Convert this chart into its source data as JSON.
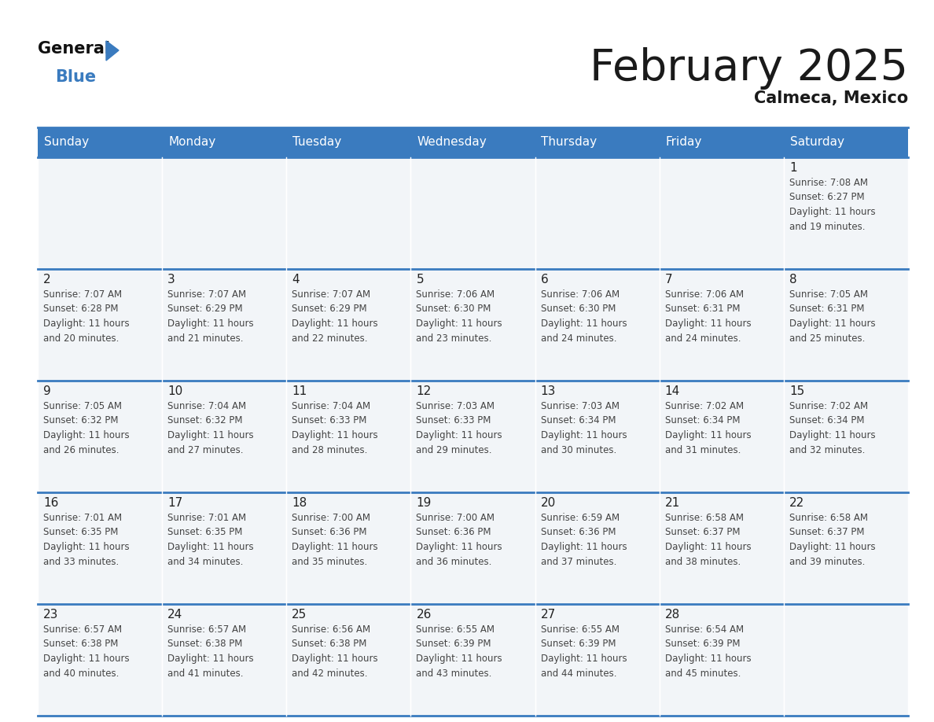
{
  "title": "February 2025",
  "subtitle": "Calmeca, Mexico",
  "header_color": "#3a7bbf",
  "header_text_color": "#ffffff",
  "cell_bg": "#f0f4f8",
  "day_names": [
    "Sunday",
    "Monday",
    "Tuesday",
    "Wednesday",
    "Thursday",
    "Friday",
    "Saturday"
  ],
  "grid_line_color": "#3a7bbf",
  "date_text_color": "#222222",
  "info_text_color": "#444444",
  "calendar_data": [
    [
      {
        "day": "",
        "sunrise": "",
        "sunset": "",
        "daylight": ""
      },
      {
        "day": "",
        "sunrise": "",
        "sunset": "",
        "daylight": ""
      },
      {
        "day": "",
        "sunrise": "",
        "sunset": "",
        "daylight": ""
      },
      {
        "day": "",
        "sunrise": "",
        "sunset": "",
        "daylight": ""
      },
      {
        "day": "",
        "sunrise": "",
        "sunset": "",
        "daylight": ""
      },
      {
        "day": "",
        "sunrise": "",
        "sunset": "",
        "daylight": ""
      },
      {
        "day": "1",
        "sunrise": "7:08 AM",
        "sunset": "6:27 PM",
        "daylight": "11 hours and 19 minutes."
      }
    ],
    [
      {
        "day": "2",
        "sunrise": "7:07 AM",
        "sunset": "6:28 PM",
        "daylight": "11 hours and 20 minutes."
      },
      {
        "day": "3",
        "sunrise": "7:07 AM",
        "sunset": "6:29 PM",
        "daylight": "11 hours and 21 minutes."
      },
      {
        "day": "4",
        "sunrise": "7:07 AM",
        "sunset": "6:29 PM",
        "daylight": "11 hours and 22 minutes."
      },
      {
        "day": "5",
        "sunrise": "7:06 AM",
        "sunset": "6:30 PM",
        "daylight": "11 hours and 23 minutes."
      },
      {
        "day": "6",
        "sunrise": "7:06 AM",
        "sunset": "6:30 PM",
        "daylight": "11 hours and 24 minutes."
      },
      {
        "day": "7",
        "sunrise": "7:06 AM",
        "sunset": "6:31 PM",
        "daylight": "11 hours and 24 minutes."
      },
      {
        "day": "8",
        "sunrise": "7:05 AM",
        "sunset": "6:31 PM",
        "daylight": "11 hours and 25 minutes."
      }
    ],
    [
      {
        "day": "9",
        "sunrise": "7:05 AM",
        "sunset": "6:32 PM",
        "daylight": "11 hours and 26 minutes."
      },
      {
        "day": "10",
        "sunrise": "7:04 AM",
        "sunset": "6:32 PM",
        "daylight": "11 hours and 27 minutes."
      },
      {
        "day": "11",
        "sunrise": "7:04 AM",
        "sunset": "6:33 PM",
        "daylight": "11 hours and 28 minutes."
      },
      {
        "day": "12",
        "sunrise": "7:03 AM",
        "sunset": "6:33 PM",
        "daylight": "11 hours and 29 minutes."
      },
      {
        "day": "13",
        "sunrise": "7:03 AM",
        "sunset": "6:34 PM",
        "daylight": "11 hours and 30 minutes."
      },
      {
        "day": "14",
        "sunrise": "7:02 AM",
        "sunset": "6:34 PM",
        "daylight": "11 hours and 31 minutes."
      },
      {
        "day": "15",
        "sunrise": "7:02 AM",
        "sunset": "6:34 PM",
        "daylight": "11 hours and 32 minutes."
      }
    ],
    [
      {
        "day": "16",
        "sunrise": "7:01 AM",
        "sunset": "6:35 PM",
        "daylight": "11 hours and 33 minutes."
      },
      {
        "day": "17",
        "sunrise": "7:01 AM",
        "sunset": "6:35 PM",
        "daylight": "11 hours and 34 minutes."
      },
      {
        "day": "18",
        "sunrise": "7:00 AM",
        "sunset": "6:36 PM",
        "daylight": "11 hours and 35 minutes."
      },
      {
        "day": "19",
        "sunrise": "7:00 AM",
        "sunset": "6:36 PM",
        "daylight": "11 hours and 36 minutes."
      },
      {
        "day": "20",
        "sunrise": "6:59 AM",
        "sunset": "6:36 PM",
        "daylight": "11 hours and 37 minutes."
      },
      {
        "day": "21",
        "sunrise": "6:58 AM",
        "sunset": "6:37 PM",
        "daylight": "11 hours and 38 minutes."
      },
      {
        "day": "22",
        "sunrise": "6:58 AM",
        "sunset": "6:37 PM",
        "daylight": "11 hours and 39 minutes."
      }
    ],
    [
      {
        "day": "23",
        "sunrise": "6:57 AM",
        "sunset": "6:38 PM",
        "daylight": "11 hours and 40 minutes."
      },
      {
        "day": "24",
        "sunrise": "6:57 AM",
        "sunset": "6:38 PM",
        "daylight": "11 hours and 41 minutes."
      },
      {
        "day": "25",
        "sunrise": "6:56 AM",
        "sunset": "6:38 PM",
        "daylight": "11 hours and 42 minutes."
      },
      {
        "day": "26",
        "sunrise": "6:55 AM",
        "sunset": "6:39 PM",
        "daylight": "11 hours and 43 minutes."
      },
      {
        "day": "27",
        "sunrise": "6:55 AM",
        "sunset": "6:39 PM",
        "daylight": "11 hours and 44 minutes."
      },
      {
        "day": "28",
        "sunrise": "6:54 AM",
        "sunset": "6:39 PM",
        "daylight": "11 hours and 45 minutes."
      },
      {
        "day": "",
        "sunrise": "",
        "sunset": "",
        "daylight": ""
      }
    ]
  ]
}
